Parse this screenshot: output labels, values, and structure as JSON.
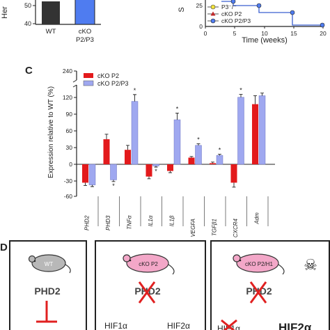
{
  "panelA": {
    "ylabel": "Her",
    "ticks": [
      "50",
      "40"
    ],
    "categories": [
      "WT",
      "cKO\nP2/P3"
    ],
    "bar_values": [
      53,
      58
    ],
    "colors": {
      "wt": "#333333",
      "cko": "#4f7cf0"
    }
  },
  "panelB": {
    "ylabel": "S",
    "ytick": "25",
    "yticks_zero": "0",
    "xticks": [
      "0",
      "5",
      "10",
      "15",
      "20"
    ],
    "xlabel": "Time (weeks)",
    "legend": [
      {
        "label": "P3⁻/⁻",
        "marker": "circle-yellow"
      },
      {
        "label": "cKO P2",
        "marker": "triangle-red"
      },
      {
        "label": "cKO P2/P3",
        "marker": "circle-blue"
      }
    ]
  },
  "panelC": {
    "panel_label": "C",
    "title": "",
    "ylabel": "Expression relative to WT (%)",
    "ylim": [
      -60,
      240
    ],
    "yticks": [
      "240",
      "120",
      "90",
      "60",
      "30",
      "0",
      "-30",
      "-60"
    ],
    "legend": [
      {
        "label": "cKO P2",
        "color": "#e31a1c"
      },
      {
        "label": "cKO P2/P3",
        "color": "#9fa8f0"
      }
    ]
  },
  "chart_data": {
    "type": "bar",
    "title": "",
    "xlabel": "",
    "ylabel": "Expression relative to WT (%)",
    "ylim": [
      -60,
      240
    ],
    "categories": [
      "PHD2",
      "PHD3",
      "TNFα",
      "IL1α",
      "IL1β",
      "VEGFA",
      "TGFβ1",
      "CXCR4",
      "Adm"
    ],
    "series": [
      {
        "name": "cKO P2",
        "color": "#e31a1c",
        "values": [
          -33,
          45,
          26,
          -22,
          -12,
          12,
          2,
          -33,
          108
        ],
        "errors": [
          5,
          9,
          8,
          4,
          3,
          2,
          2,
          8,
          20
        ]
      },
      {
        "name": "cKO P2/P3",
        "color": "#9fa8f0",
        "values": [
          -37,
          -28,
          113,
          -3,
          80,
          34,
          16,
          121,
          128
        ],
        "errors": [
          3,
          3,
          20,
          2,
          12,
          3,
          2,
          13,
          12
        ]
      }
    ],
    "significance": [
      "",
      "*",
      "*",
      "*",
      "*",
      "*",
      "*",
      "*",
      ""
    ],
    "significance_series": [
      1,
      1,
      1,
      1,
      1,
      1,
      1,
      1,
      1
    ],
    "grid": false,
    "legend_position": "top-left"
  },
  "panelD": {
    "panel_label": "D",
    "boxes": [
      {
        "mouse_label": "WT",
        "gene": "PHD2",
        "crossed": false
      },
      {
        "mouse_label": "cKO P2",
        "gene": "PHD2",
        "crossed": true,
        "bottom": [
          "HIF1α",
          "HIF2α"
        ]
      },
      {
        "mouse_label": "cKO P2/H1",
        "gene": "PHD2",
        "crossed": true,
        "bottom": [
          "HIF1α",
          "HIF2α"
        ],
        "skull": "☠"
      }
    ],
    "colors": {
      "mouse_wt": "#b8b8b8",
      "mouse_cko": "#f3a7c8",
      "cross": "#e02020",
      "inhibit": "#e02020"
    }
  }
}
